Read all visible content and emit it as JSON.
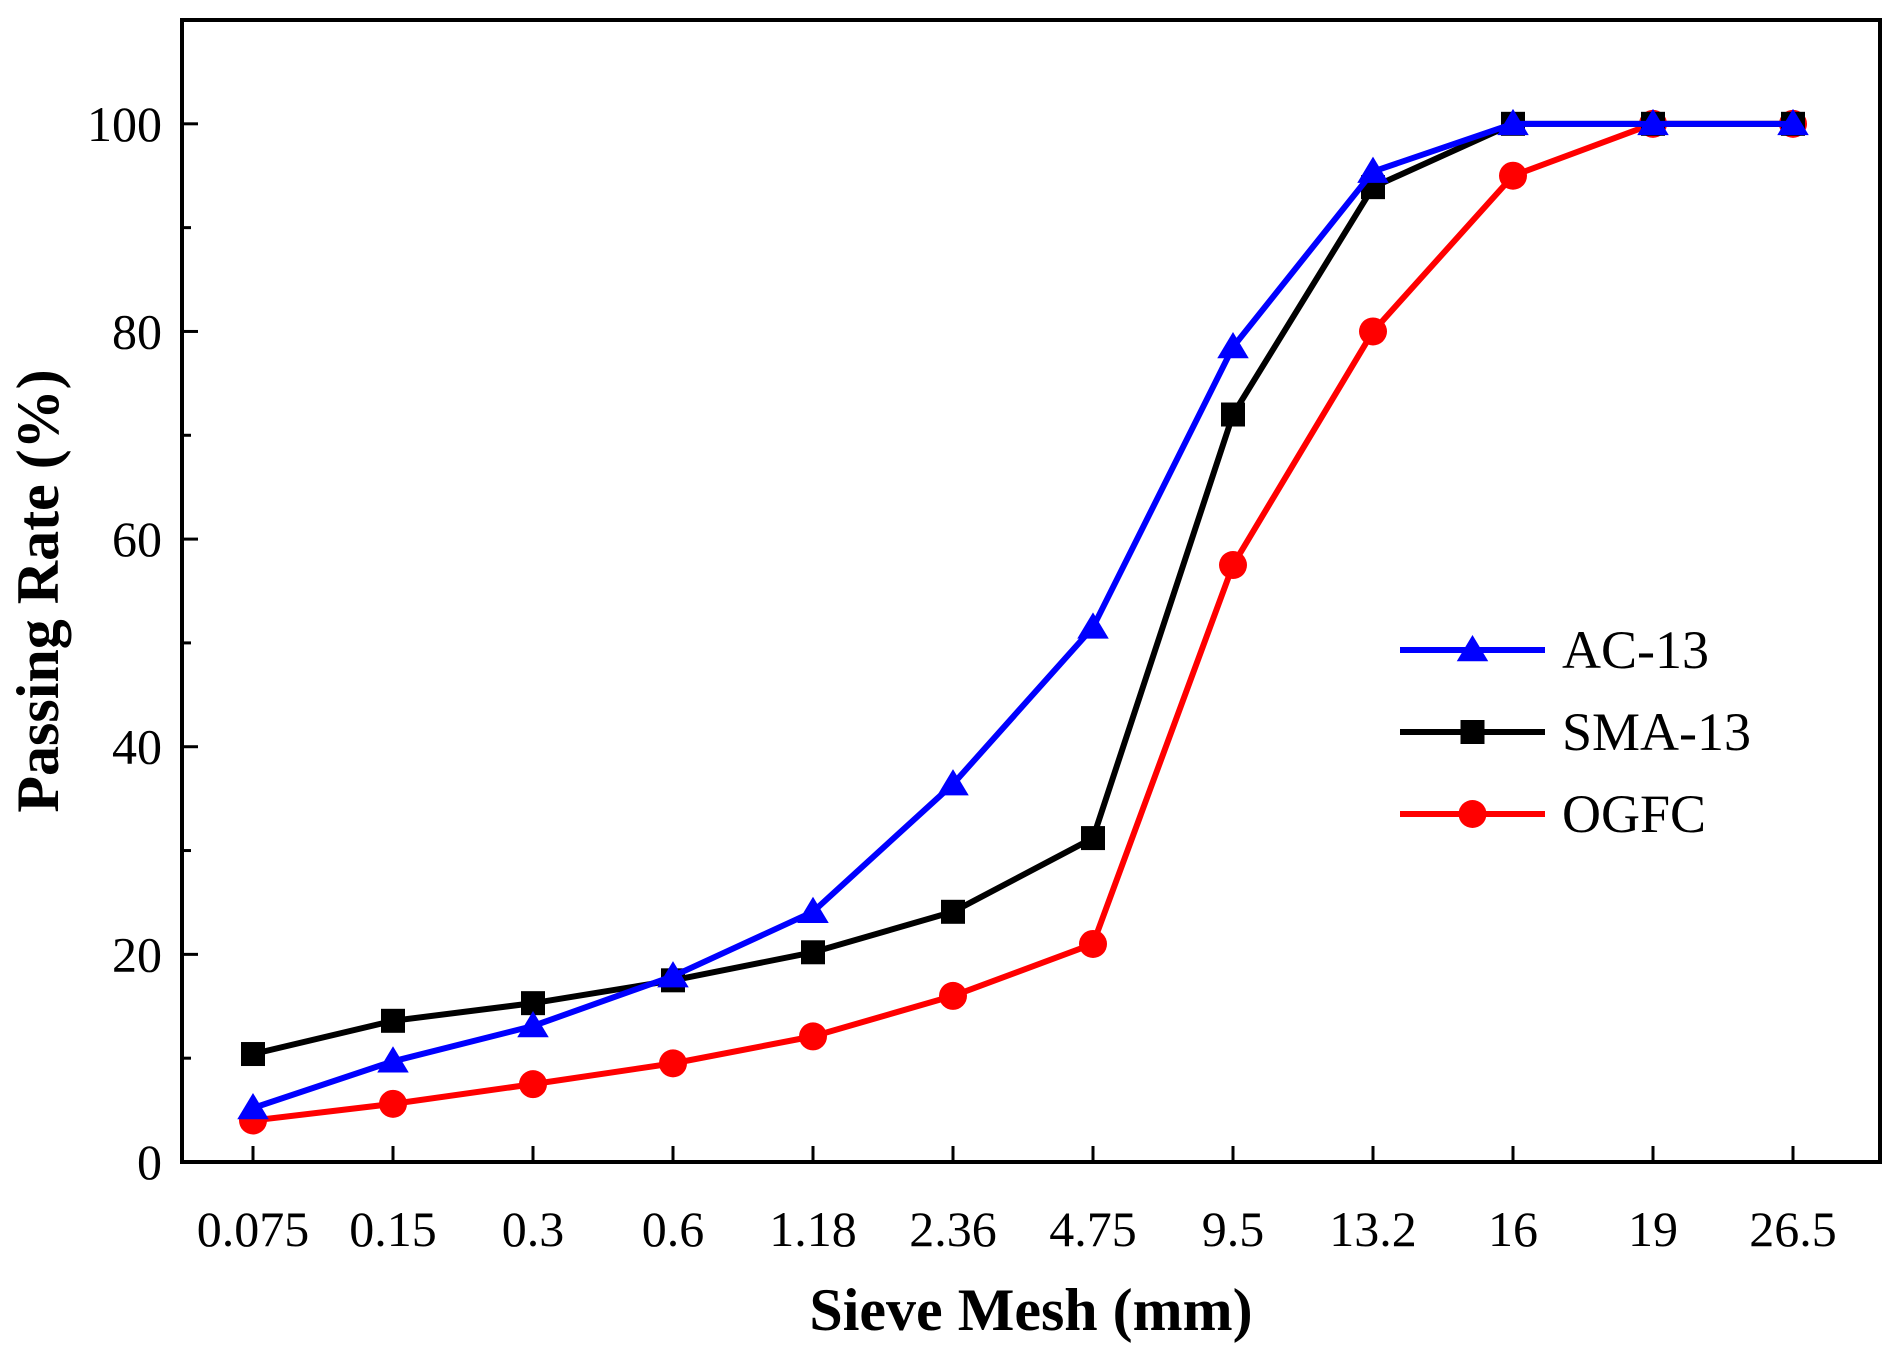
{
  "chart_data": {
    "type": "line",
    "title": "",
    "xlabel": "Sieve Mesh (mm)",
    "ylabel": "Passing Rate (%)",
    "categories": [
      "0.075",
      "0.15",
      "0.3",
      "0.6",
      "1.18",
      "2.36",
      "4.75",
      "9.5",
      "13.2",
      "16",
      "19",
      "26.5"
    ],
    "ylim": [
      0,
      110
    ],
    "yticks": [
      "0",
      "20",
      "40",
      "60",
      "80",
      "100"
    ],
    "legend_position": "right",
    "series": [
      {
        "name": "AC-13",
        "color": "#0000ff",
        "marker": "triangle",
        "values": [
          5.2,
          9.7,
          13.1,
          17.9,
          24.1,
          36.4,
          51.5,
          78.5,
          95.4,
          100,
          100,
          100
        ]
      },
      {
        "name": "SMA-13",
        "color": "#000000",
        "marker": "square",
        "values": [
          10.4,
          13.6,
          15.3,
          17.5,
          20.2,
          24.1,
          31.2,
          72.0,
          93.9,
          100,
          100,
          100
        ]
      },
      {
        "name": "OGFC",
        "color": "#ff0000",
        "marker": "circle",
        "values": [
          4.0,
          5.6,
          7.5,
          9.5,
          12.1,
          16.0,
          21.0,
          57.5,
          80.0,
          95.0,
          100,
          100
        ]
      }
    ]
  }
}
